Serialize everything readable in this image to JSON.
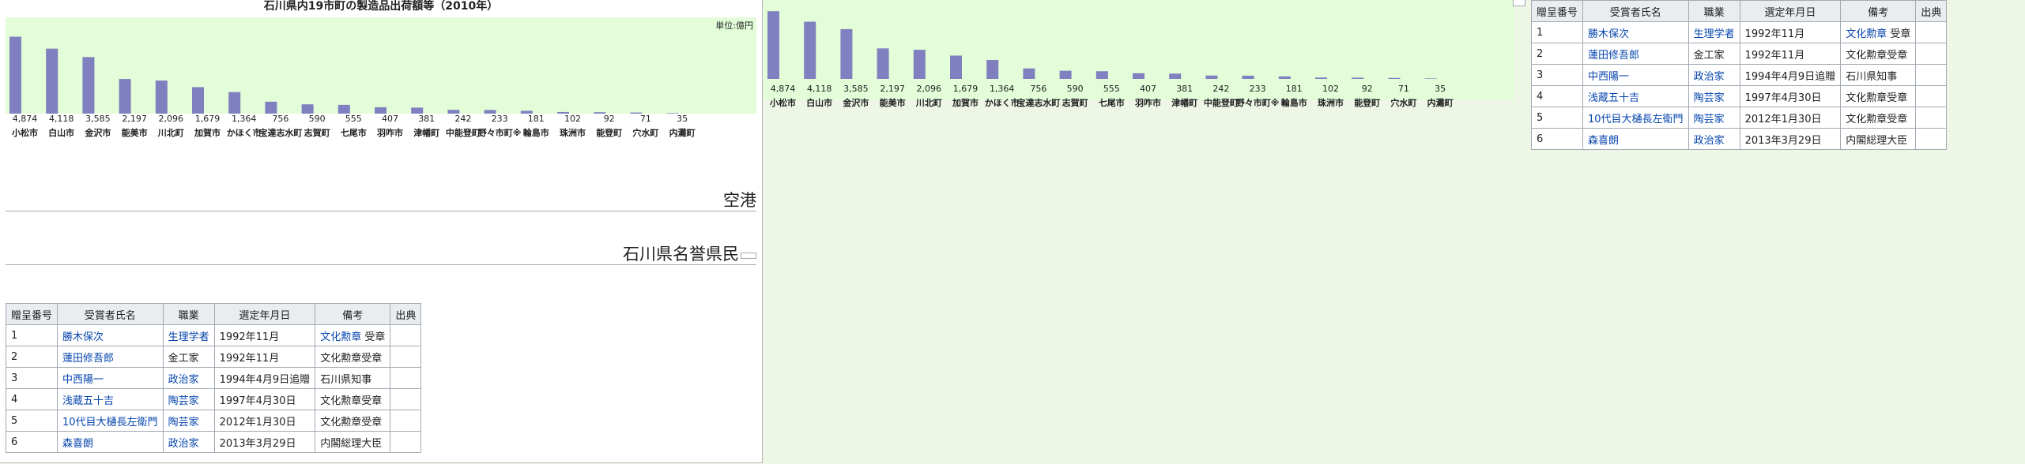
{
  "chart_title": "石川県内19市町の製造品出荷額等（2010年）",
  "unit_label": "単位:億円",
  "chart_data": {
    "type": "bar",
    "title": "石川県内19市町の製造品出荷額等（2010年）",
    "ylabel": "単位:億円",
    "categories": [
      "小松市",
      "白山市",
      "金沢市",
      "能美市",
      "川北町",
      "加賀市",
      "かほく市",
      "宝達志水町",
      "志賀町",
      "七尾市",
      "羽咋市",
      "津幡町",
      "中能登町",
      "野々市町※",
      "輪島市",
      "珠洲市",
      "能登町",
      "穴水町",
      "内灘町"
    ],
    "values": [
      4874,
      4118,
      3585,
      2197,
      2096,
      1679,
      1364,
      756,
      590,
      555,
      407,
      381,
      242,
      233,
      181,
      102,
      92,
      71,
      35
    ],
    "color": "#8080c0",
    "ylim": [
      0,
      5000
    ]
  },
  "headings": {
    "airport": "空港",
    "honorary": "石川県名誉県民"
  },
  "table": {
    "headers": [
      "贈呈番号",
      "受賞者氏名",
      "職業",
      "選定年月日",
      "備考",
      "出典"
    ],
    "rows": [
      {
        "no": "1",
        "name": "勝木保次",
        "job": "生理学者",
        "date": "1992年11月",
        "note_link": "文化勲章",
        "note": " 受章",
        "src": ""
      },
      {
        "no": "2",
        "name": "蓮田修吾郎",
        "job": "金工家",
        "date": "1992年11月",
        "note_link": "",
        "note": "文化勲章受章",
        "src": ""
      },
      {
        "no": "3",
        "name": "中西陽一",
        "job": "政治家",
        "date": "1994年4月9日追贈",
        "note_link": "",
        "note": "石川県知事",
        "src": ""
      },
      {
        "no": "4",
        "name": "浅蔵五十吉",
        "job": "陶芸家",
        "date": "1997年4月30日",
        "note_link": "",
        "note": "文化勲章受章",
        "src": ""
      },
      {
        "no": "5",
        "name": "10代目大樋長左衛門",
        "job": "陶芸家",
        "date": "2012年1月30日",
        "note_link": "",
        "note": "文化勲章受章",
        "src": ""
      },
      {
        "no": "6",
        "name": "森喜朗",
        "job": "政治家",
        "date": "2013年3月29日",
        "note_link": "",
        "note": "内閣総理大臣",
        "src": ""
      }
    ],
    "link_jobs": [
      "生理学者",
      "政治家",
      "陶芸家"
    ]
  },
  "table_right_note_links": [
    "文化勲章",
    "",
    "",
    "",
    "",
    ""
  ]
}
